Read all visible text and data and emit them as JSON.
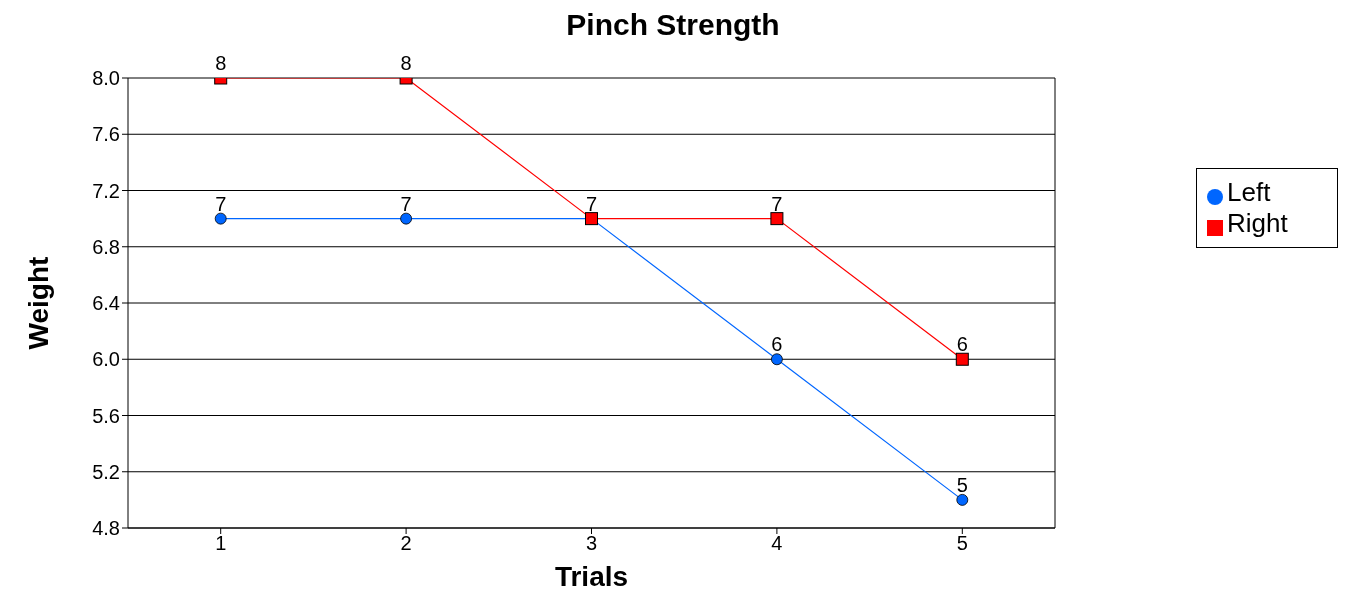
{
  "chart_data": {
    "type": "line",
    "title": "Pinch Strength",
    "xlabel": "Trials",
    "ylabel": "Weight",
    "categories": [
      "1",
      "2",
      "3",
      "4",
      "5"
    ],
    "series": [
      {
        "name": "Left",
        "color": "#0066ff",
        "marker": "circle",
        "values": [
          7,
          7,
          7,
          6,
          5
        ],
        "value_labels": [
          "7",
          "7",
          null,
          "6",
          "5"
        ]
      },
      {
        "name": "Right",
        "color": "#ff0000",
        "marker": "square",
        "values": [
          8,
          8,
          7,
          7,
          6
        ],
        "value_labels": [
          "8",
          "8",
          "7",
          "7",
          "6"
        ]
      }
    ],
    "ylim": [
      4.8,
      8.0
    ],
    "yticks": [
      {
        "value": 4.8,
        "label": "4.8"
      },
      {
        "value": 5.2,
        "label": "5.2"
      },
      {
        "value": 5.6,
        "label": "5.6"
      },
      {
        "value": 6,
        "label": "6.0"
      },
      {
        "value": 6.4,
        "label": "6.4"
      },
      {
        "value": 6.8,
        "label": "6.8"
      },
      {
        "value": 7.2,
        "label": "7.2"
      },
      {
        "value": 7.6,
        "label": "7.6"
      },
      {
        "value": 8,
        "label": "8.0"
      }
    ],
    "grid": "y",
    "legend": "right",
    "line_style": "solid"
  }
}
